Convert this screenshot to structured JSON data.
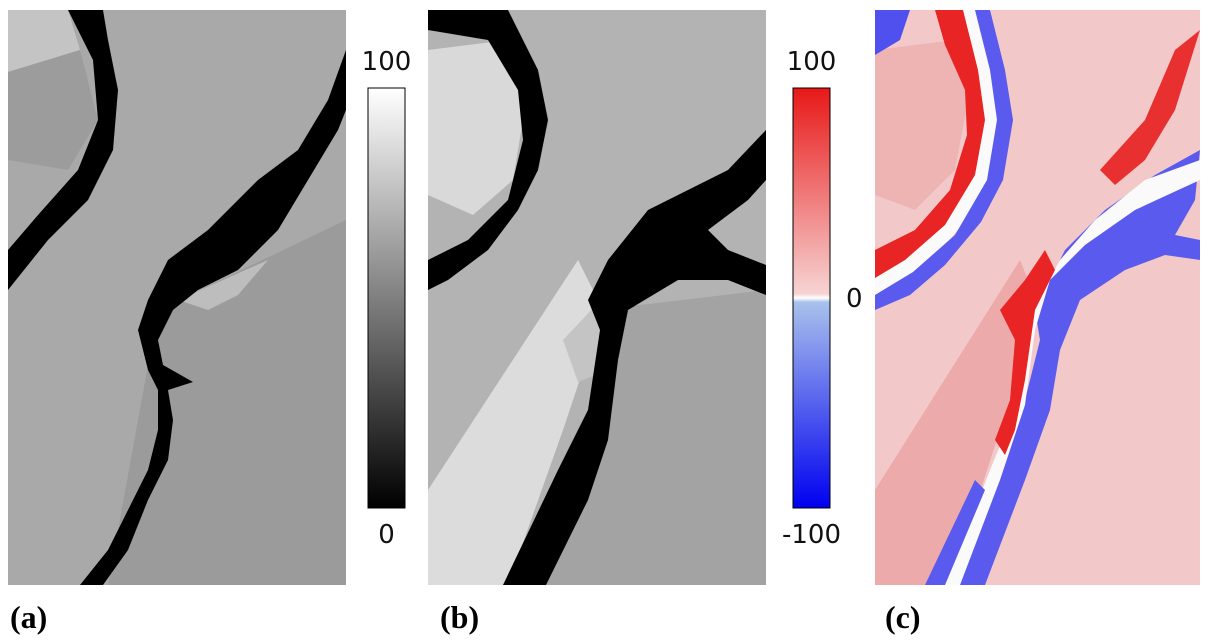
{
  "panels": [
    {
      "label": "(a)"
    },
    {
      "label": "(b)"
    },
    {
      "label": "(c)"
    }
  ],
  "colorbars": [
    {
      "range": [
        0,
        100
      ],
      "ticks": [
        100,
        0
      ]
    },
    {
      "range": [
        -100,
        100
      ],
      "ticks": [
        100,
        0,
        -100
      ]
    }
  ]
}
